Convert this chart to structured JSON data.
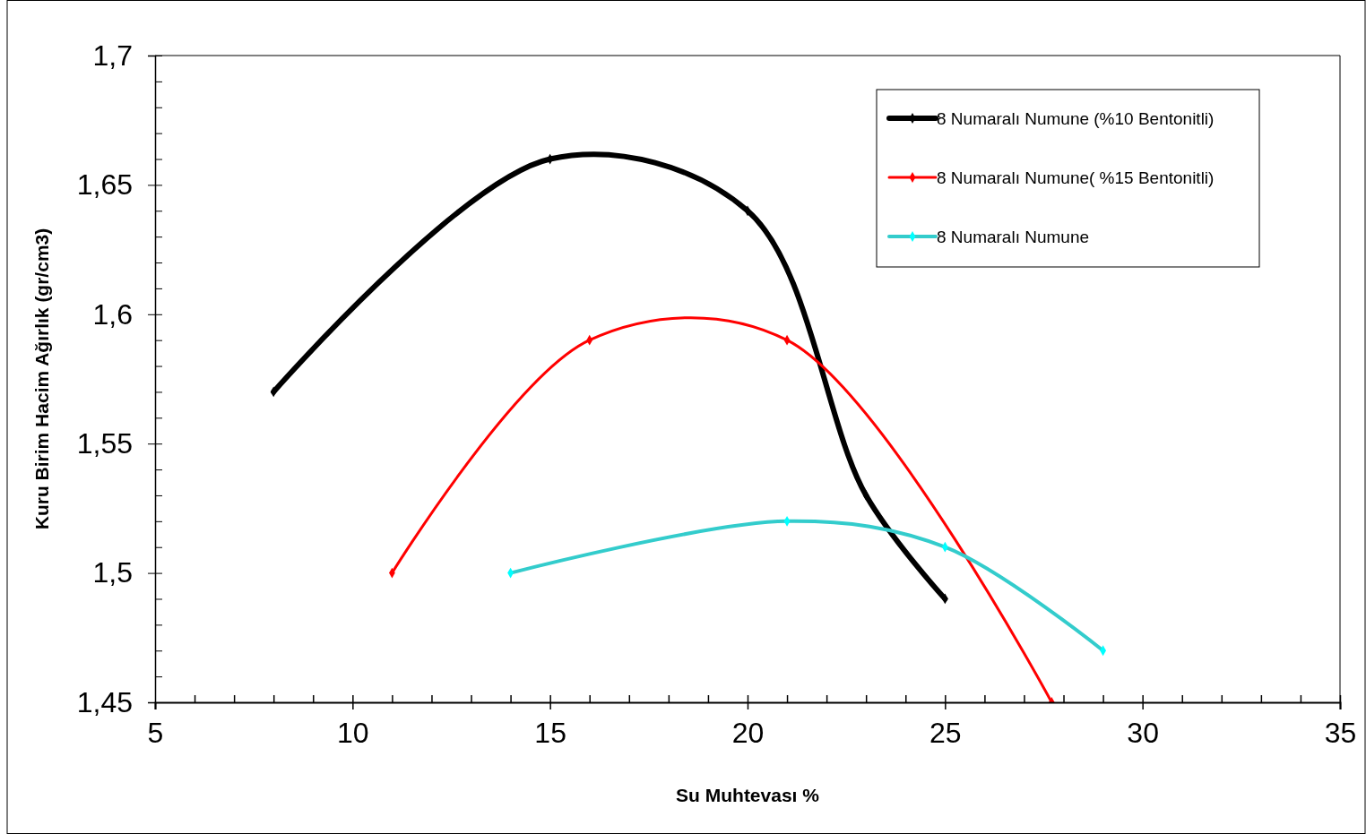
{
  "chart_data": {
    "type": "line",
    "xlabel": "Su Muhtevası %",
    "ylabel": "Kuru Birim Hacim Ağırlık (gr/cm3)",
    "xlim": [
      5,
      35
    ],
    "ylim": [
      1.45,
      1.7
    ],
    "xticks": [
      5,
      {
        "value": 6,
        "label": null
      },
      {
        "value": 7,
        "label": null
      },
      {
        "value": 8,
        "label": null
      },
      {
        "value": 9,
        "label": null
      },
      10,
      {
        "value": 11,
        "label": null
      },
      {
        "value": 12,
        "label": null
      },
      {
        "value": 13,
        "label": null
      },
      {
        "value": 14,
        "label": null
      },
      15,
      {
        "value": 16,
        "label": null
      },
      {
        "value": 17,
        "label": null
      },
      {
        "value": 18,
        "label": null
      },
      {
        "value": 19,
        "label": null
      },
      20,
      {
        "value": 21,
        "label": null
      },
      {
        "value": 22,
        "label": null
      },
      {
        "value": 23,
        "label": null
      },
      {
        "value": 24,
        "label": null
      },
      25,
      {
        "value": 26,
        "label": null
      },
      {
        "value": 27,
        "label": null
      },
      {
        "value": 28,
        "label": null
      },
      {
        "value": 29,
        "label": null
      },
      30,
      {
        "value": 31,
        "label": null
      },
      {
        "value": 32,
        "label": null
      },
      {
        "value": 33,
        "label": null
      },
      {
        "value": 34,
        "label": null
      },
      35
    ],
    "yticks": [
      {
        "value": 1.45,
        "label": "1,45"
      },
      {
        "value": 1.46,
        "label": null
      },
      {
        "value": 1.47,
        "label": null
      },
      {
        "value": 1.48,
        "label": null
      },
      {
        "value": 1.49,
        "label": null
      },
      {
        "value": 1.5,
        "label": "1,5"
      },
      {
        "value": 1.51,
        "label": null
      },
      {
        "value": 1.52,
        "label": null
      },
      {
        "value": 1.53,
        "label": null
      },
      {
        "value": 1.54,
        "label": null
      },
      {
        "value": 1.55,
        "label": "1,55"
      },
      {
        "value": 1.56,
        "label": null
      },
      {
        "value": 1.57,
        "label": null
      },
      {
        "value": 1.58,
        "label": null
      },
      {
        "value": 1.59,
        "label": null
      },
      {
        "value": 1.6,
        "label": "1,6"
      },
      {
        "value": 1.61,
        "label": null
      },
      {
        "value": 1.62,
        "label": null
      },
      {
        "value": 1.63,
        "label": null
      },
      {
        "value": 1.64,
        "label": null
      },
      {
        "value": 1.65,
        "label": "1,65"
      },
      {
        "value": 1.66,
        "label": null
      },
      {
        "value": 1.67,
        "label": null
      },
      {
        "value": 1.68,
        "label": null
      },
      {
        "value": 1.69,
        "label": null
      },
      {
        "value": 1.7,
        "label": "1,7"
      }
    ],
    "legend": "top right",
    "marker": "diamond",
    "line_style": "solid",
    "grid": false,
    "series": [
      {
        "name": "8 Numaralı Numune (%10 Bentonitli)",
        "color": "#000000",
        "x": [
          8,
          15,
          20,
          23,
          25
        ],
        "values": [
          1.57,
          1.66,
          1.64,
          1.53,
          1.49
        ]
      },
      {
        "name": "8 Numaralı Numune( %15 Bentonitli)",
        "color": "#ff0000",
        "x": [
          11,
          16,
          21,
          25,
          27.7
        ],
        "values": [
          1.5,
          1.59,
          1.59,
          null,
          1.45
        ]
      },
      {
        "name": "8 Numaralı Numune",
        "color": "#33cccc",
        "x": [
          14,
          21,
          25,
          29
        ],
        "values": [
          1.5,
          1.52,
          1.51,
          1.47
        ]
      }
    ]
  }
}
